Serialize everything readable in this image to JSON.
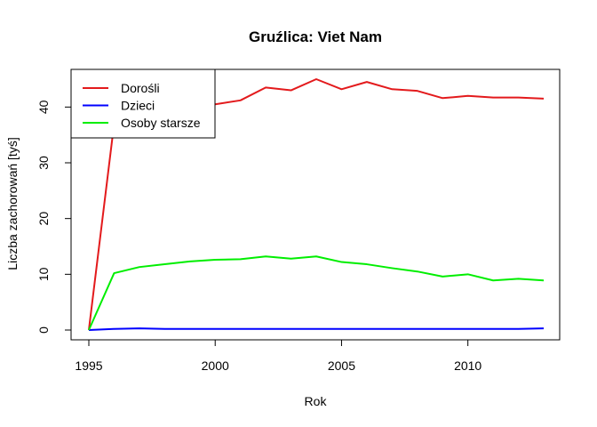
{
  "chart_data": {
    "type": "line",
    "title": "Gruźlica: Viet Nam",
    "xlabel": "Rok",
    "ylabel": "Liczba zachorowań [tyś]",
    "xlim": [
      1995,
      2013
    ],
    "ylim": [
      0,
      45
    ],
    "x_ticks": [
      1995,
      2000,
      2005,
      2010
    ],
    "y_ticks": [
      0,
      10,
      20,
      30,
      40
    ],
    "grid": false,
    "legend_position": "top-left",
    "x": [
      1995,
      1996,
      1997,
      1998,
      1999,
      2000,
      2001,
      2002,
      2003,
      2004,
      2005,
      2006,
      2007,
      2008,
      2009,
      2010,
      2011,
      2012,
      2013
    ],
    "series": [
      {
        "name": "Dorośli",
        "color": "#e31a1c",
        "values": [
          0,
          37,
          38.5,
          39.5,
          40,
          40.5,
          41.2,
          43.5,
          43,
          45,
          43.2,
          44.5,
          43.2,
          42.9,
          41.6,
          42,
          41.7,
          41.7,
          41.5
        ]
      },
      {
        "name": "Dzieci",
        "color": "#0000ff",
        "values": [
          0,
          0.2,
          0.3,
          0.2,
          0.2,
          0.2,
          0.2,
          0.2,
          0.2,
          0.2,
          0.2,
          0.2,
          0.2,
          0.2,
          0.2,
          0.2,
          0.2,
          0.2,
          0.3
        ]
      },
      {
        "name": "Osoby starsze",
        "color": "#00ee00",
        "values": [
          0,
          10.2,
          11.3,
          11.8,
          12.3,
          12.6,
          12.7,
          13.2,
          12.8,
          13.2,
          12.2,
          11.8,
          11.1,
          10.5,
          9.6,
          10,
          8.9,
          9.2,
          8.9
        ]
      }
    ]
  }
}
